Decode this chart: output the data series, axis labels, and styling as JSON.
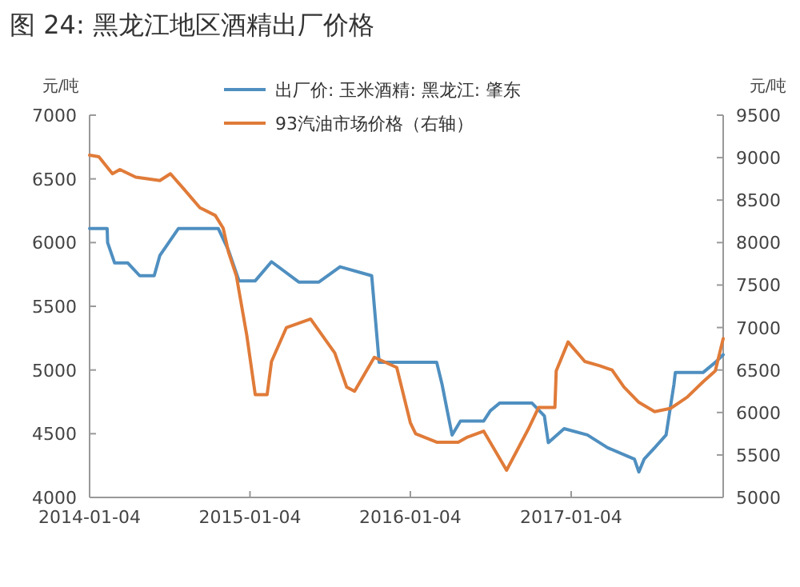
{
  "chart_data": {
    "type": "line",
    "title": "图 24: 黑龙江地区酒精出厂价格",
    "ylabel": "元/吨",
    "y2label": "元/吨",
    "xlim": [
      "2014-01-04",
      "2017-12-16"
    ],
    "xticks": [
      "2014-01-04",
      "2015-01-04",
      "2016-01-04",
      "2017-01-04"
    ],
    "ylim": [
      4000,
      7000
    ],
    "yticks": [
      4000,
      4500,
      5000,
      5500,
      6000,
      6500,
      7000
    ],
    "y2lim": [
      5000,
      9500
    ],
    "y2ticks": [
      5000,
      5500,
      6000,
      6500,
      7000,
      7500,
      8000,
      8500,
      9000,
      9500
    ],
    "legend": "top",
    "grid": false,
    "series": [
      {
        "name": "出厂价: 玉米酒精: 黑龙江: 肇东",
        "color": "#4f8fc0",
        "x": [
          "2014-01-04",
          "2014-02-13",
          "2014-02-14",
          "2014-03-02",
          "2014-04-01",
          "2014-04-28",
          "2014-05-31",
          "2014-06-13",
          "2014-07-25",
          "2014-10-24",
          "2014-11-16",
          "2014-12-10",
          "2015-01-16",
          "2015-02-22",
          "2015-04-25",
          "2015-06-10",
          "2015-07-28",
          "2015-10-08",
          "2015-10-25",
          "2016-03-04",
          "2016-03-16",
          "2016-03-28",
          "2016-04-08",
          "2016-04-27",
          "2016-06-19",
          "2016-07-04",
          "2016-07-25",
          "2016-10-07",
          "2016-11-04",
          "2016-11-13",
          "2016-12-19",
          "2017-02-10",
          "2017-03-28",
          "2017-05-28",
          "2017-06-07",
          "2017-06-19",
          "2017-07-13",
          "2017-08-08",
          "2017-08-26",
          "2017-08-29",
          "2017-10-31",
          "2017-11-28",
          "2017-12-16"
        ],
        "values": [
          6110,
          6110,
          6000,
          5840,
          5840,
          5740,
          5740,
          5900,
          6110,
          6110,
          5940,
          5700,
          5700,
          5850,
          5690,
          5690,
          5810,
          5740,
          5060,
          5060,
          4890,
          4680,
          4490,
          4600,
          4600,
          4680,
          4740,
          4740,
          4640,
          4430,
          4540,
          4490,
          4390,
          4300,
          4200,
          4300,
          4390,
          4490,
          4890,
          4980,
          4980,
          5060,
          5120
        ]
      },
      {
        "name": "93汽油市场价格（右轴）",
        "color": "#e07b39",
        "axis": "y2",
        "x": [
          "2014-01-04",
          "2014-01-25",
          "2014-02-25",
          "2014-03-14",
          "2014-04-19",
          "2014-06-13",
          "2014-07-07",
          "2014-08-05",
          "2014-09-12",
          "2014-10-17",
          "2014-11-04",
          "2014-11-16",
          "2014-12-04",
          "2014-12-28",
          "2015-01-16",
          "2015-02-12",
          "2015-02-22",
          "2015-03-28",
          "2015-05-22",
          "2015-07-16",
          "2015-08-12",
          "2015-08-30",
          "2015-09-27",
          "2015-10-14",
          "2015-12-04",
          "2016-01-04",
          "2016-01-16",
          "2016-03-04",
          "2016-04-22",
          "2016-05-13",
          "2016-06-19",
          "2016-08-10",
          "2016-09-28",
          "2016-10-22",
          "2016-11-28",
          "2016-12-01",
          "2016-12-28",
          "2017-02-04",
          "2017-03-10",
          "2017-04-07",
          "2017-05-04",
          "2017-06-07",
          "2017-07-13",
          "2017-08-19",
          "2017-09-25",
          "2017-10-31",
          "2017-11-28",
          "2017-12-16"
        ],
        "values": [
          9030,
          9010,
          8810,
          8860,
          8770,
          8730,
          8810,
          8640,
          8410,
          8320,
          8170,
          7890,
          7610,
          6900,
          6210,
          6210,
          6600,
          7000,
          7100,
          6700,
          6300,
          6250,
          6500,
          6650,
          6530,
          5880,
          5750,
          5650,
          5650,
          5710,
          5780,
          5320,
          5800,
          6060,
          6060,
          6490,
          6830,
          6600,
          6550,
          6500,
          6300,
          6120,
          6010,
          6050,
          6180,
          6360,
          6490,
          6870
        ]
      }
    ]
  }
}
